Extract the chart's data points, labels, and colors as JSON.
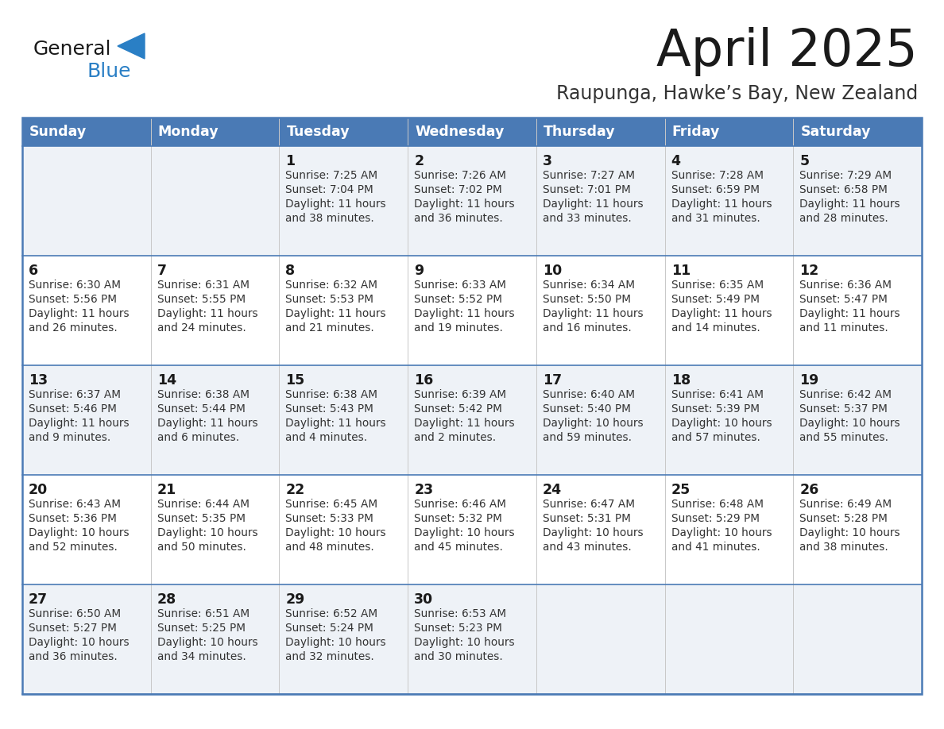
{
  "title": "April 2025",
  "subtitle": "Raupunga, Hawke’s Bay, New Zealand",
  "header_bg": "#4a7ab5",
  "header_text": "#ffffff",
  "day_names": [
    "Sunday",
    "Monday",
    "Tuesday",
    "Wednesday",
    "Thursday",
    "Friday",
    "Saturday"
  ],
  "row_bg_odd": "#eef2f7",
  "row_bg_even": "#ffffff",
  "separator_color": "#4a7ab5",
  "title_color": "#1a1a1a",
  "subtitle_color": "#333333",
  "date_color": "#1a1a1a",
  "content_color": "#333333",
  "logo_general_color": "#1a1a1a",
  "logo_blue_color": "#2a7fc5",
  "weeks": [
    [
      {
        "day": "",
        "info": ""
      },
      {
        "day": "",
        "info": ""
      },
      {
        "day": "1",
        "info": "Sunrise: 7:25 AM\nSunset: 7:04 PM\nDaylight: 11 hours\nand 38 minutes."
      },
      {
        "day": "2",
        "info": "Sunrise: 7:26 AM\nSunset: 7:02 PM\nDaylight: 11 hours\nand 36 minutes."
      },
      {
        "day": "3",
        "info": "Sunrise: 7:27 AM\nSunset: 7:01 PM\nDaylight: 11 hours\nand 33 minutes."
      },
      {
        "day": "4",
        "info": "Sunrise: 7:28 AM\nSunset: 6:59 PM\nDaylight: 11 hours\nand 31 minutes."
      },
      {
        "day": "5",
        "info": "Sunrise: 7:29 AM\nSunset: 6:58 PM\nDaylight: 11 hours\nand 28 minutes."
      }
    ],
    [
      {
        "day": "6",
        "info": "Sunrise: 6:30 AM\nSunset: 5:56 PM\nDaylight: 11 hours\nand 26 minutes."
      },
      {
        "day": "7",
        "info": "Sunrise: 6:31 AM\nSunset: 5:55 PM\nDaylight: 11 hours\nand 24 minutes."
      },
      {
        "day": "8",
        "info": "Sunrise: 6:32 AM\nSunset: 5:53 PM\nDaylight: 11 hours\nand 21 minutes."
      },
      {
        "day": "9",
        "info": "Sunrise: 6:33 AM\nSunset: 5:52 PM\nDaylight: 11 hours\nand 19 minutes."
      },
      {
        "day": "10",
        "info": "Sunrise: 6:34 AM\nSunset: 5:50 PM\nDaylight: 11 hours\nand 16 minutes."
      },
      {
        "day": "11",
        "info": "Sunrise: 6:35 AM\nSunset: 5:49 PM\nDaylight: 11 hours\nand 14 minutes."
      },
      {
        "day": "12",
        "info": "Sunrise: 6:36 AM\nSunset: 5:47 PM\nDaylight: 11 hours\nand 11 minutes."
      }
    ],
    [
      {
        "day": "13",
        "info": "Sunrise: 6:37 AM\nSunset: 5:46 PM\nDaylight: 11 hours\nand 9 minutes."
      },
      {
        "day": "14",
        "info": "Sunrise: 6:38 AM\nSunset: 5:44 PM\nDaylight: 11 hours\nand 6 minutes."
      },
      {
        "day": "15",
        "info": "Sunrise: 6:38 AM\nSunset: 5:43 PM\nDaylight: 11 hours\nand 4 minutes."
      },
      {
        "day": "16",
        "info": "Sunrise: 6:39 AM\nSunset: 5:42 PM\nDaylight: 11 hours\nand 2 minutes."
      },
      {
        "day": "17",
        "info": "Sunrise: 6:40 AM\nSunset: 5:40 PM\nDaylight: 10 hours\nand 59 minutes."
      },
      {
        "day": "18",
        "info": "Sunrise: 6:41 AM\nSunset: 5:39 PM\nDaylight: 10 hours\nand 57 minutes."
      },
      {
        "day": "19",
        "info": "Sunrise: 6:42 AM\nSunset: 5:37 PM\nDaylight: 10 hours\nand 55 minutes."
      }
    ],
    [
      {
        "day": "20",
        "info": "Sunrise: 6:43 AM\nSunset: 5:36 PM\nDaylight: 10 hours\nand 52 minutes."
      },
      {
        "day": "21",
        "info": "Sunrise: 6:44 AM\nSunset: 5:35 PM\nDaylight: 10 hours\nand 50 minutes."
      },
      {
        "day": "22",
        "info": "Sunrise: 6:45 AM\nSunset: 5:33 PM\nDaylight: 10 hours\nand 48 minutes."
      },
      {
        "day": "23",
        "info": "Sunrise: 6:46 AM\nSunset: 5:32 PM\nDaylight: 10 hours\nand 45 minutes."
      },
      {
        "day": "24",
        "info": "Sunrise: 6:47 AM\nSunset: 5:31 PM\nDaylight: 10 hours\nand 43 minutes."
      },
      {
        "day": "25",
        "info": "Sunrise: 6:48 AM\nSunset: 5:29 PM\nDaylight: 10 hours\nand 41 minutes."
      },
      {
        "day": "26",
        "info": "Sunrise: 6:49 AM\nSunset: 5:28 PM\nDaylight: 10 hours\nand 38 minutes."
      }
    ],
    [
      {
        "day": "27",
        "info": "Sunrise: 6:50 AM\nSunset: 5:27 PM\nDaylight: 10 hours\nand 36 minutes."
      },
      {
        "day": "28",
        "info": "Sunrise: 6:51 AM\nSunset: 5:25 PM\nDaylight: 10 hours\nand 34 minutes."
      },
      {
        "day": "29",
        "info": "Sunrise: 6:52 AM\nSunset: 5:24 PM\nDaylight: 10 hours\nand 32 minutes."
      },
      {
        "day": "30",
        "info": "Sunrise: 6:53 AM\nSunset: 5:23 PM\nDaylight: 10 hours\nand 30 minutes."
      },
      {
        "day": "",
        "info": ""
      },
      {
        "day": "",
        "info": ""
      },
      {
        "day": "",
        "info": ""
      }
    ]
  ]
}
